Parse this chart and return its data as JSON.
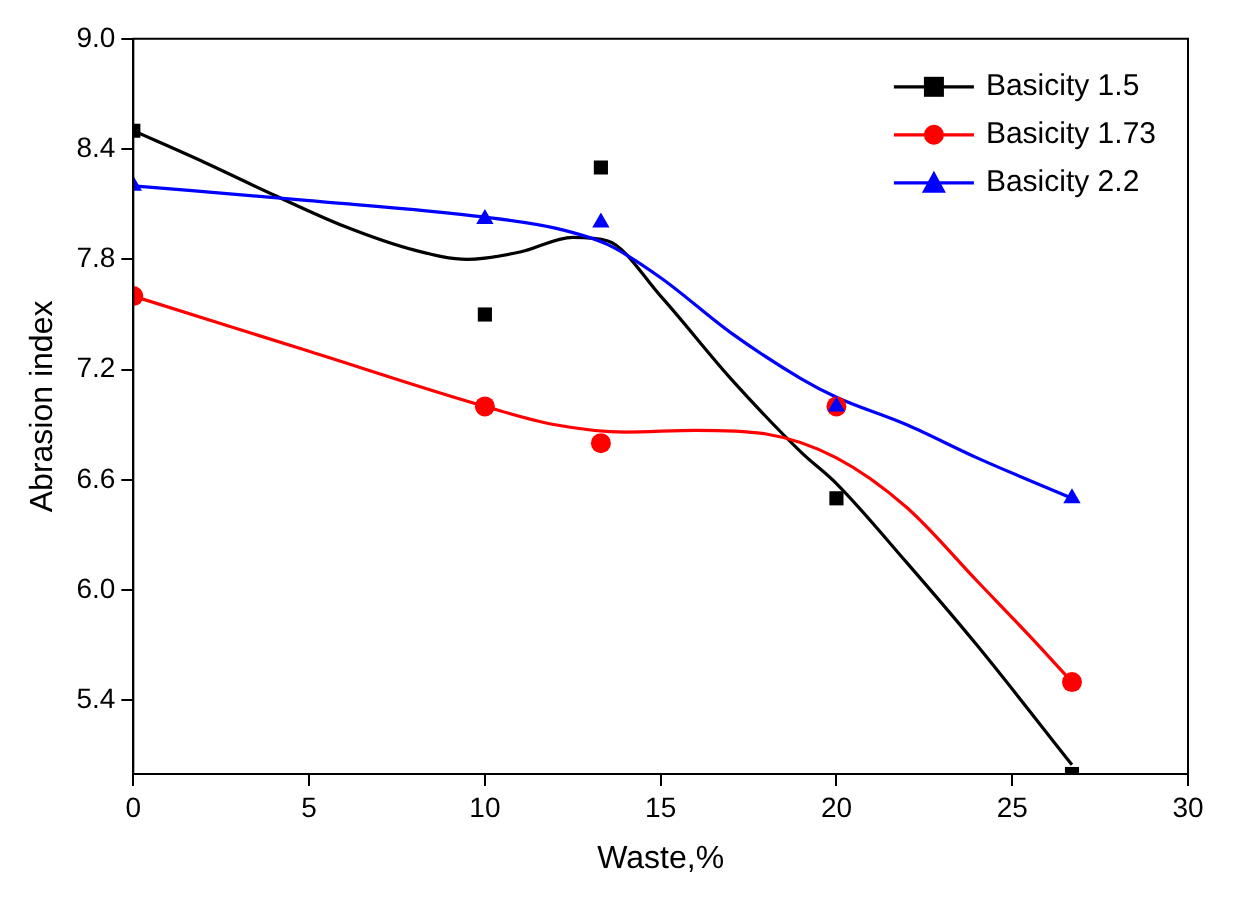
{
  "chart_data": {
    "type": "scatter",
    "xlabel": "Waste,%",
    "ylabel": "Abrasion index",
    "xlim": [
      0,
      30
    ],
    "xticks": [
      0,
      5,
      10,
      15,
      20,
      25,
      30
    ],
    "ylim": [
      5.0,
      9.0
    ],
    "yticks": [
      5.4,
      {
        "value": 6,
        "label": "6.0"
      },
      6.6,
      7.2,
      7.8,
      8.4,
      {
        "value": 9,
        "label": "9.0"
      }
    ],
    "grid": false,
    "legend": "top right",
    "series": [
      {
        "name": "Basicity 1.5",
        "type": "scatter",
        "marker": "square",
        "color": "#000000",
        "x": [
          0,
          10,
          13.3,
          20,
          26.7
        ],
        "values": [
          8.5,
          7.5,
          8.3,
          6.5,
          5.0
        ]
      },
      {
        "name": "Basicity 1.73",
        "type": "scatter",
        "marker": "circle",
        "color": "#ff0000",
        "x": [
          0,
          10,
          13.3,
          20,
          26.7
        ],
        "values": [
          7.6,
          7.0,
          6.8,
          7.0,
          5.5
        ]
      },
      {
        "name": "Basicity 2.2",
        "type": "scatter",
        "marker": "triangle",
        "color": "#0000ff",
        "x": [
          0,
          10,
          13.3,
          20,
          26.7
        ],
        "values": [
          8.2,
          8.02,
          8.0,
          7.0,
          6.5
        ]
      },
      {
        "type": "line",
        "marker": "none",
        "color": "#000000",
        "x": [
          0,
          2,
          4,
          6,
          8,
          9.5,
          11,
          12.5,
          13.5,
          15,
          17,
          19,
          20,
          22,
          24,
          26.7
        ],
        "values": [
          8.5,
          8.33,
          8.15,
          7.98,
          7.85,
          7.8,
          7.84,
          7.92,
          7.9,
          7.6,
          7.15,
          6.75,
          6.58,
          6.15,
          5.7,
          5.05
        ]
      },
      {
        "type": "line",
        "marker": "none",
        "color": "#ff0000",
        "x": [
          0,
          5,
          10,
          12,
          14,
          16,
          18,
          20,
          22,
          24,
          25.5,
          26.7
        ],
        "values": [
          7.6,
          7.3,
          7.0,
          6.9,
          6.86,
          6.87,
          6.85,
          6.72,
          6.45,
          6.05,
          5.75,
          5.5
        ]
      },
      {
        "type": "line",
        "marker": "none",
        "color": "#0000ff",
        "x": [
          0,
          5,
          10,
          12,
          13.5,
          15,
          17,
          19,
          20,
          22,
          24,
          26.7
        ],
        "values": [
          8.2,
          8.12,
          8.03,
          7.97,
          7.88,
          7.7,
          7.4,
          7.15,
          7.05,
          6.9,
          6.72,
          6.5
        ]
      }
    ]
  }
}
